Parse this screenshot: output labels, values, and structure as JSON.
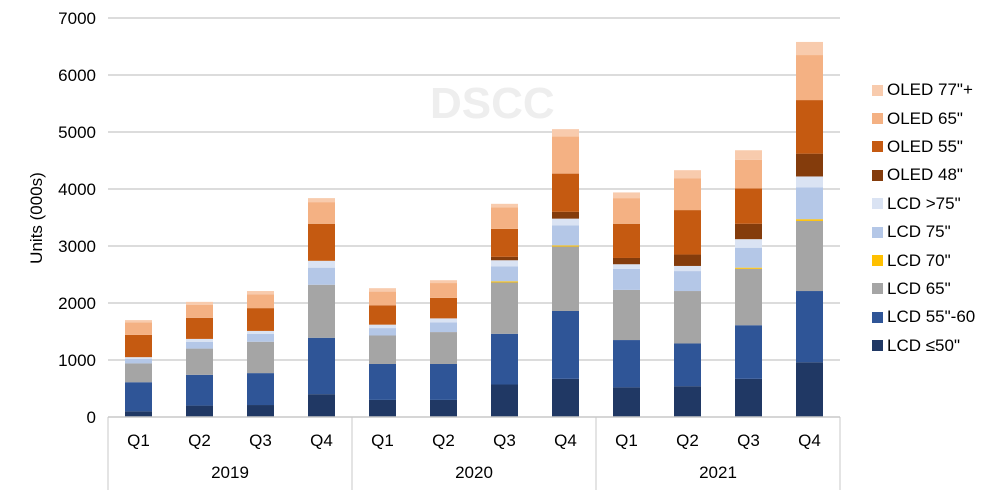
{
  "chart_data": {
    "type": "bar",
    "stacked": true,
    "title": "",
    "watermark": "DSCC",
    "xlabel": "",
    "ylabel": "Units (000s)",
    "ylim": [
      0,
      7000
    ],
    "yticks": [
      0,
      1000,
      2000,
      3000,
      4000,
      5000,
      6000,
      7000
    ],
    "grid": true,
    "legend_position": "right",
    "groups": [
      {
        "label": "2019",
        "categories": [
          "Q1",
          "Q2",
          "Q3",
          "Q4"
        ]
      },
      {
        "label": "2020",
        "categories": [
          "Q1",
          "Q2",
          "Q3",
          "Q4"
        ]
      },
      {
        "label": "2021",
        "categories": [
          "Q1",
          "Q2",
          "Q3",
          "Q4"
        ]
      }
    ],
    "categories": [
      "2019 Q1",
      "2019 Q2",
      "2019 Q3",
      "2019 Q4",
      "2020 Q1",
      "2020 Q2",
      "2020 Q3",
      "2020 Q4",
      "2021 Q1",
      "2021 Q2",
      "2021 Q3",
      "2021 Q4"
    ],
    "series": [
      {
        "name": "LCD ≤50\"",
        "color": "#203864",
        "values": [
          100,
          200,
          210,
          400,
          300,
          300,
          570,
          670,
          520,
          540,
          670,
          960
        ]
      },
      {
        "name": "LCD 55\"-60",
        "color": "#2f5597",
        "values": [
          510,
          540,
          560,
          990,
          630,
          630,
          890,
          1190,
          830,
          750,
          940,
          1250
        ]
      },
      {
        "name": "LCD 65\"",
        "color": "#a5a5a5",
        "values": [
          330,
          460,
          550,
          930,
          500,
          560,
          900,
          1130,
          880,
          920,
          990,
          1230
        ]
      },
      {
        "name": "LCD 70\"",
        "color": "#ffc000",
        "values": [
          0,
          0,
          0,
          0,
          0,
          0,
          20,
          20,
          0,
          0,
          20,
          30
        ]
      },
      {
        "name": "LCD 75\"",
        "color": "#b4c7e7",
        "values": [
          80,
          120,
          140,
          300,
          130,
          170,
          260,
          350,
          370,
          350,
          350,
          560
        ]
      },
      {
        "name": "LCD >75\"",
        "color": "#dae3f3",
        "values": [
          30,
          50,
          50,
          120,
          60,
          70,
          110,
          120,
          80,
          90,
          150,
          190
        ]
      },
      {
        "name": "OLED 48\"",
        "color": "#843c0c",
        "values": [
          0,
          0,
          0,
          0,
          0,
          0,
          60,
          120,
          110,
          200,
          270,
          400
        ]
      },
      {
        "name": "OLED 55\"",
        "color": "#c55a11",
        "values": [
          390,
          370,
          400,
          650,
          340,
          360,
          490,
          670,
          600,
          780,
          620,
          940
        ]
      },
      {
        "name": "OLED 65\"",
        "color": "#f4b183",
        "values": [
          220,
          230,
          240,
          380,
          240,
          260,
          380,
          650,
          450,
          560,
          500,
          790
        ]
      },
      {
        "name": "OLED 77\"+",
        "color": "#f8cbad",
        "values": [
          40,
          50,
          60,
          70,
          60,
          50,
          60,
          130,
          100,
          140,
          170,
          230
        ]
      }
    ]
  },
  "legend_order": [
    "OLED 77\"+",
    "OLED 65\"",
    "OLED 55\"",
    "OLED 48\"",
    "LCD >75\"",
    "LCD 75\"",
    "LCD 70\"",
    "LCD 65\"",
    "LCD 55\"-60",
    "LCD ≤50\""
  ]
}
